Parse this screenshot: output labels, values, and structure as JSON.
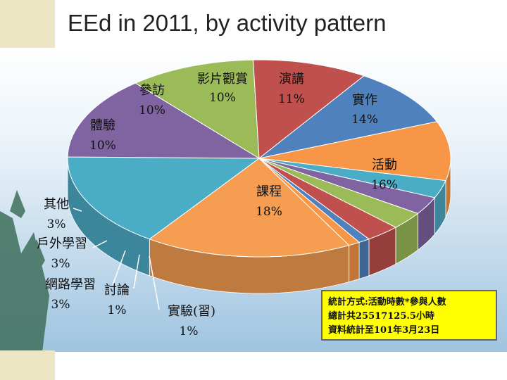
{
  "title": "EEd in 2011, by activity pattern",
  "note": {
    "line1": "統計方式:活動時數*參與人數",
    "line2": "總計共25517125.5小時",
    "line3": "資料統計至101年3月23日"
  },
  "chart_data": {
    "type": "pie",
    "title": "EEd in 2011, by activity pattern",
    "slices": [
      {
        "label": "課程",
        "value_label": "18%",
        "value": 18,
        "color": "#f59d51"
      },
      {
        "label": "活動",
        "value_label": "16%",
        "value": 16,
        "color": "#4bacc6"
      },
      {
        "label": "實作",
        "value_label": "14%",
        "value": 14,
        "color": "#8064a2"
      },
      {
        "label": "演講",
        "value_label": "11%",
        "value": 11,
        "color": "#9bbb59"
      },
      {
        "label": "影片觀賞",
        "value_label": "10%",
        "value": 10,
        "color": "#c0504d"
      },
      {
        "label": "參訪",
        "value_label": "10%",
        "value": 10,
        "color": "#4f81bd"
      },
      {
        "label": "體驗",
        "value_label": "10%",
        "value": 10,
        "color": "#f79646"
      },
      {
        "label": "",
        "value_label": "",
        "value": 3,
        "color": "#4bacc6"
      },
      {
        "label": "其他",
        "value_label": "3%",
        "value": 3,
        "color": "#8064a2"
      },
      {
        "label": "戶外學習",
        "value_label": "3%",
        "value": 3,
        "color": "#9bbb59"
      },
      {
        "label": "網路學習",
        "value_label": "3%",
        "value": 3,
        "color": "#c0504d"
      },
      {
        "label": "討論",
        "value_label": "1%",
        "value": 1,
        "color": "#4f81bd"
      },
      {
        "label": "實驗(習)",
        "value_label": "1%",
        "value": 1,
        "color": "#f79646"
      }
    ]
  }
}
